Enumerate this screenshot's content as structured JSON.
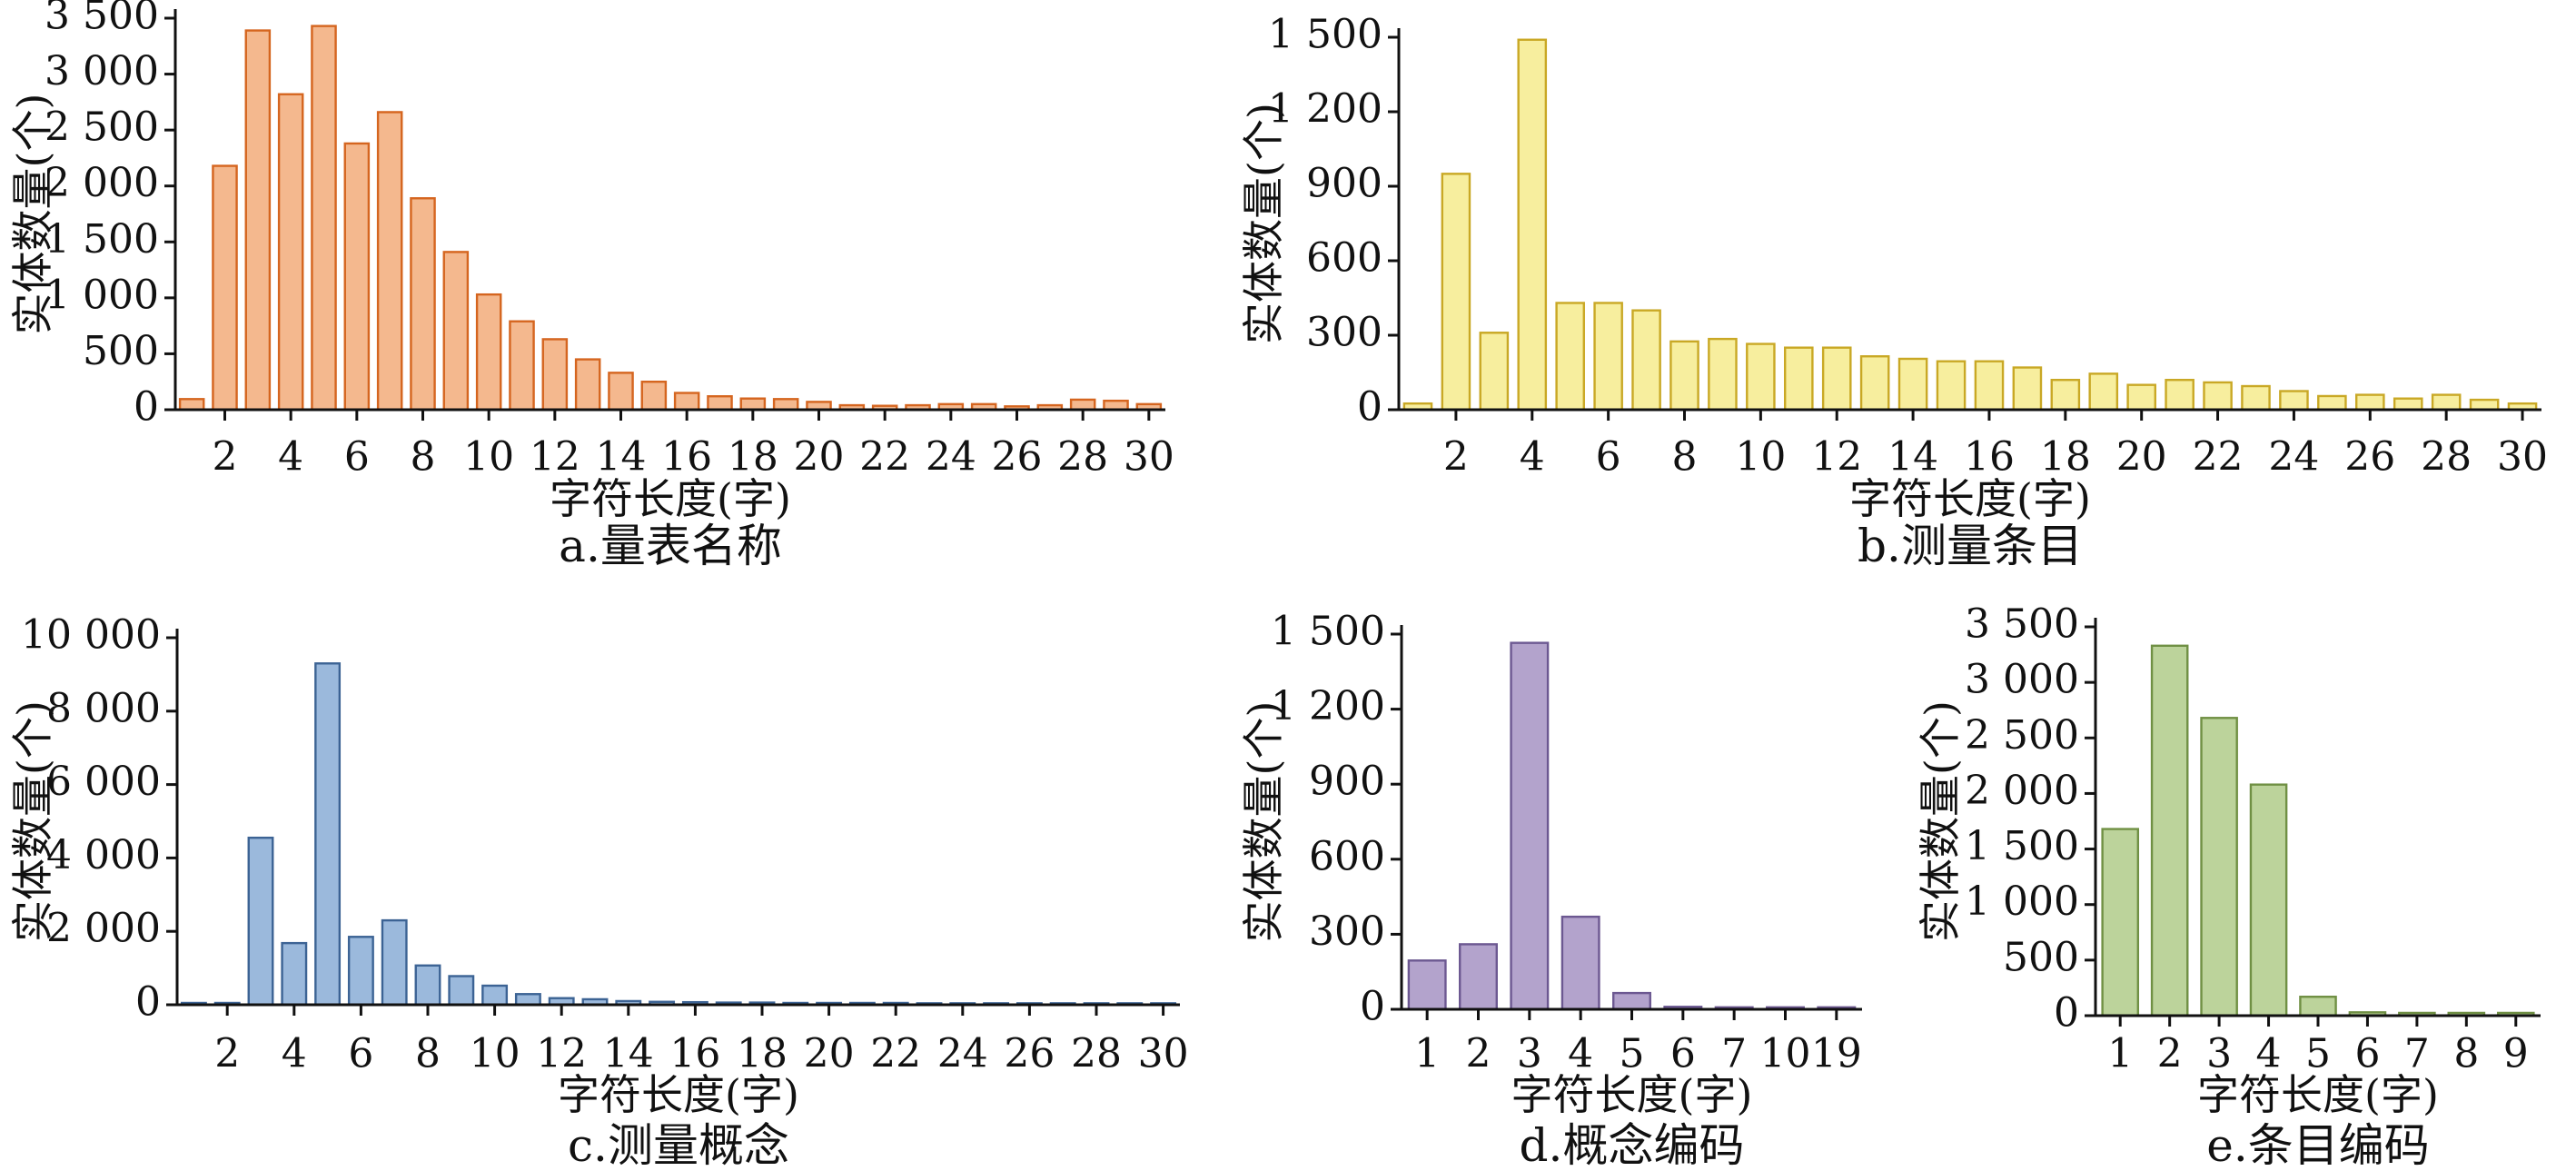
{
  "chart_data": [
    {
      "id": "a",
      "type": "bar",
      "caption": "a.量表名称",
      "xlabel": "字符长度(字)",
      "ylabel": "实体数量(个)",
      "ylim": [
        0,
        3500
      ],
      "yticks": [
        0,
        500,
        1000,
        1500,
        2000,
        2500,
        3000,
        3500
      ],
      "ytick_labels": [
        "0",
        "500",
        "1 000",
        "1 500",
        "2 000",
        "2 500",
        "3 000",
        "3 500"
      ],
      "categories": [
        "1",
        "2",
        "3",
        "4",
        "5",
        "6",
        "7",
        "8",
        "9",
        "10",
        "11",
        "12",
        "13",
        "14",
        "15",
        "16",
        "17",
        "18",
        "19",
        "20",
        "21",
        "22",
        "23",
        "24",
        "25",
        "26",
        "27",
        "28",
        "29",
        "30"
      ],
      "xtick_labels": [
        "2",
        "4",
        "6",
        "8",
        "10",
        "12",
        "14",
        "16",
        "18",
        "20",
        "22",
        "24",
        "26",
        "28",
        "30"
      ],
      "values": [
        95,
        2180,
        3390,
        2820,
        3430,
        2380,
        2660,
        1890,
        1410,
        1030,
        790,
        630,
        450,
        330,
        250,
        150,
        120,
        100,
        95,
        70,
        40,
        35,
        40,
        50,
        50,
        30,
        40,
        90,
        80,
        50
      ],
      "color": "#f4b88e",
      "edge": "#d5651f"
    },
    {
      "id": "b",
      "type": "bar",
      "caption": "b.测量条目",
      "xlabel": "字符长度(字)",
      "ylabel": "实体数量(个)",
      "ylim": [
        0,
        1500
      ],
      "yticks": [
        0,
        300,
        600,
        900,
        1200,
        1500
      ],
      "ytick_labels": [
        "0",
        "300",
        "600",
        "900",
        "1 200",
        "1 500"
      ],
      "categories": [
        "1",
        "2",
        "3",
        "4",
        "5",
        "6",
        "7",
        "8",
        "9",
        "10",
        "11",
        "12",
        "13",
        "14",
        "15",
        "16",
        "17",
        "18",
        "19",
        "20",
        "21",
        "22",
        "23",
        "24",
        "25",
        "26",
        "27",
        "28",
        "29",
        "30"
      ],
      "xtick_labels": [
        "2",
        "4",
        "6",
        "8",
        "10",
        "12",
        "14",
        "16",
        "18",
        "20",
        "22",
        "24",
        "26",
        "28",
        "30"
      ],
      "values": [
        25,
        950,
        310,
        1490,
        430,
        430,
        400,
        275,
        285,
        265,
        250,
        250,
        215,
        205,
        195,
        195,
        170,
        120,
        145,
        100,
        120,
        110,
        95,
        75,
        55,
        60,
        45,
        60,
        40,
        25
      ],
      "color": "#f7ee9e",
      "edge": "#c9a825"
    },
    {
      "id": "c",
      "type": "bar",
      "caption": "c.测量概念",
      "xlabel": "字符长度(字)",
      "ylabel": "实体数量(个)",
      "ylim": [
        0,
        10000
      ],
      "yticks": [
        0,
        2000,
        4000,
        6000,
        8000,
        10000
      ],
      "ytick_labels": [
        "0",
        "2 000",
        "4 000",
        "6 000",
        "8 000",
        "10 000"
      ],
      "categories": [
        "1",
        "2",
        "3",
        "4",
        "5",
        "6",
        "7",
        "8",
        "9",
        "10",
        "11",
        "12",
        "13",
        "14",
        "15",
        "16",
        "17",
        "18",
        "19",
        "20",
        "21",
        "22",
        "23",
        "24",
        "25",
        "26",
        "27",
        "28",
        "29",
        "30"
      ],
      "xtick_labels": [
        "2",
        "4",
        "6",
        "8",
        "10",
        "12",
        "14",
        "16",
        "18",
        "20",
        "22",
        "24",
        "26",
        "28",
        "30"
      ],
      "values": [
        50,
        50,
        4550,
        1680,
        9300,
        1850,
        2300,
        1070,
        780,
        520,
        290,
        180,
        150,
        100,
        80,
        70,
        60,
        60,
        50,
        50,
        50,
        50,
        40,
        40,
        40,
        40,
        40,
        40,
        40,
        40
      ],
      "color": "#9bb9dc",
      "edge": "#3c6394"
    },
    {
      "id": "d",
      "type": "bar",
      "caption": "d.概念编码",
      "xlabel": "字符长度(字)",
      "ylabel": "实体数量(个)",
      "ylim": [
        0,
        1500
      ],
      "yticks": [
        0,
        300,
        600,
        900,
        1200,
        1500
      ],
      "ytick_labels": [
        "0",
        "300",
        "600",
        "900",
        "1 200",
        "1 500"
      ],
      "categories": [
        "1",
        "2",
        "3",
        "4",
        "5",
        "6",
        "7",
        "10",
        "19"
      ],
      "xtick_labels": [
        "1",
        "2",
        "3",
        "4",
        "5",
        "6",
        "7",
        "10",
        "19"
      ],
      "values": [
        195,
        260,
        1465,
        370,
        65,
        10,
        8,
        8,
        8
      ],
      "color": "#b3a3cc",
      "edge": "#6c5891"
    },
    {
      "id": "e",
      "type": "bar",
      "caption": "e.条目编码",
      "xlabel": "字符长度(字)",
      "ylabel": "实体数量(个)",
      "ylim": [
        0,
        3500
      ],
      "yticks": [
        0,
        500,
        1000,
        1500,
        2000,
        2500,
        3000,
        3500
      ],
      "ytick_labels": [
        "0",
        "500",
        "1 000",
        "1 500",
        "2 000",
        "2 500",
        "3 000",
        "3 500"
      ],
      "categories": [
        "1",
        "2",
        "3",
        "4",
        "5",
        "6",
        "7",
        "8",
        "9"
      ],
      "xtick_labels": [
        "1",
        "2",
        "3",
        "4",
        "5",
        "6",
        "7",
        "8",
        "9"
      ],
      "values": [
        1680,
        3330,
        2680,
        2080,
        170,
        30,
        25,
        25,
        25
      ],
      "color": "#bcd39b",
      "edge": "#709044"
    }
  ]
}
